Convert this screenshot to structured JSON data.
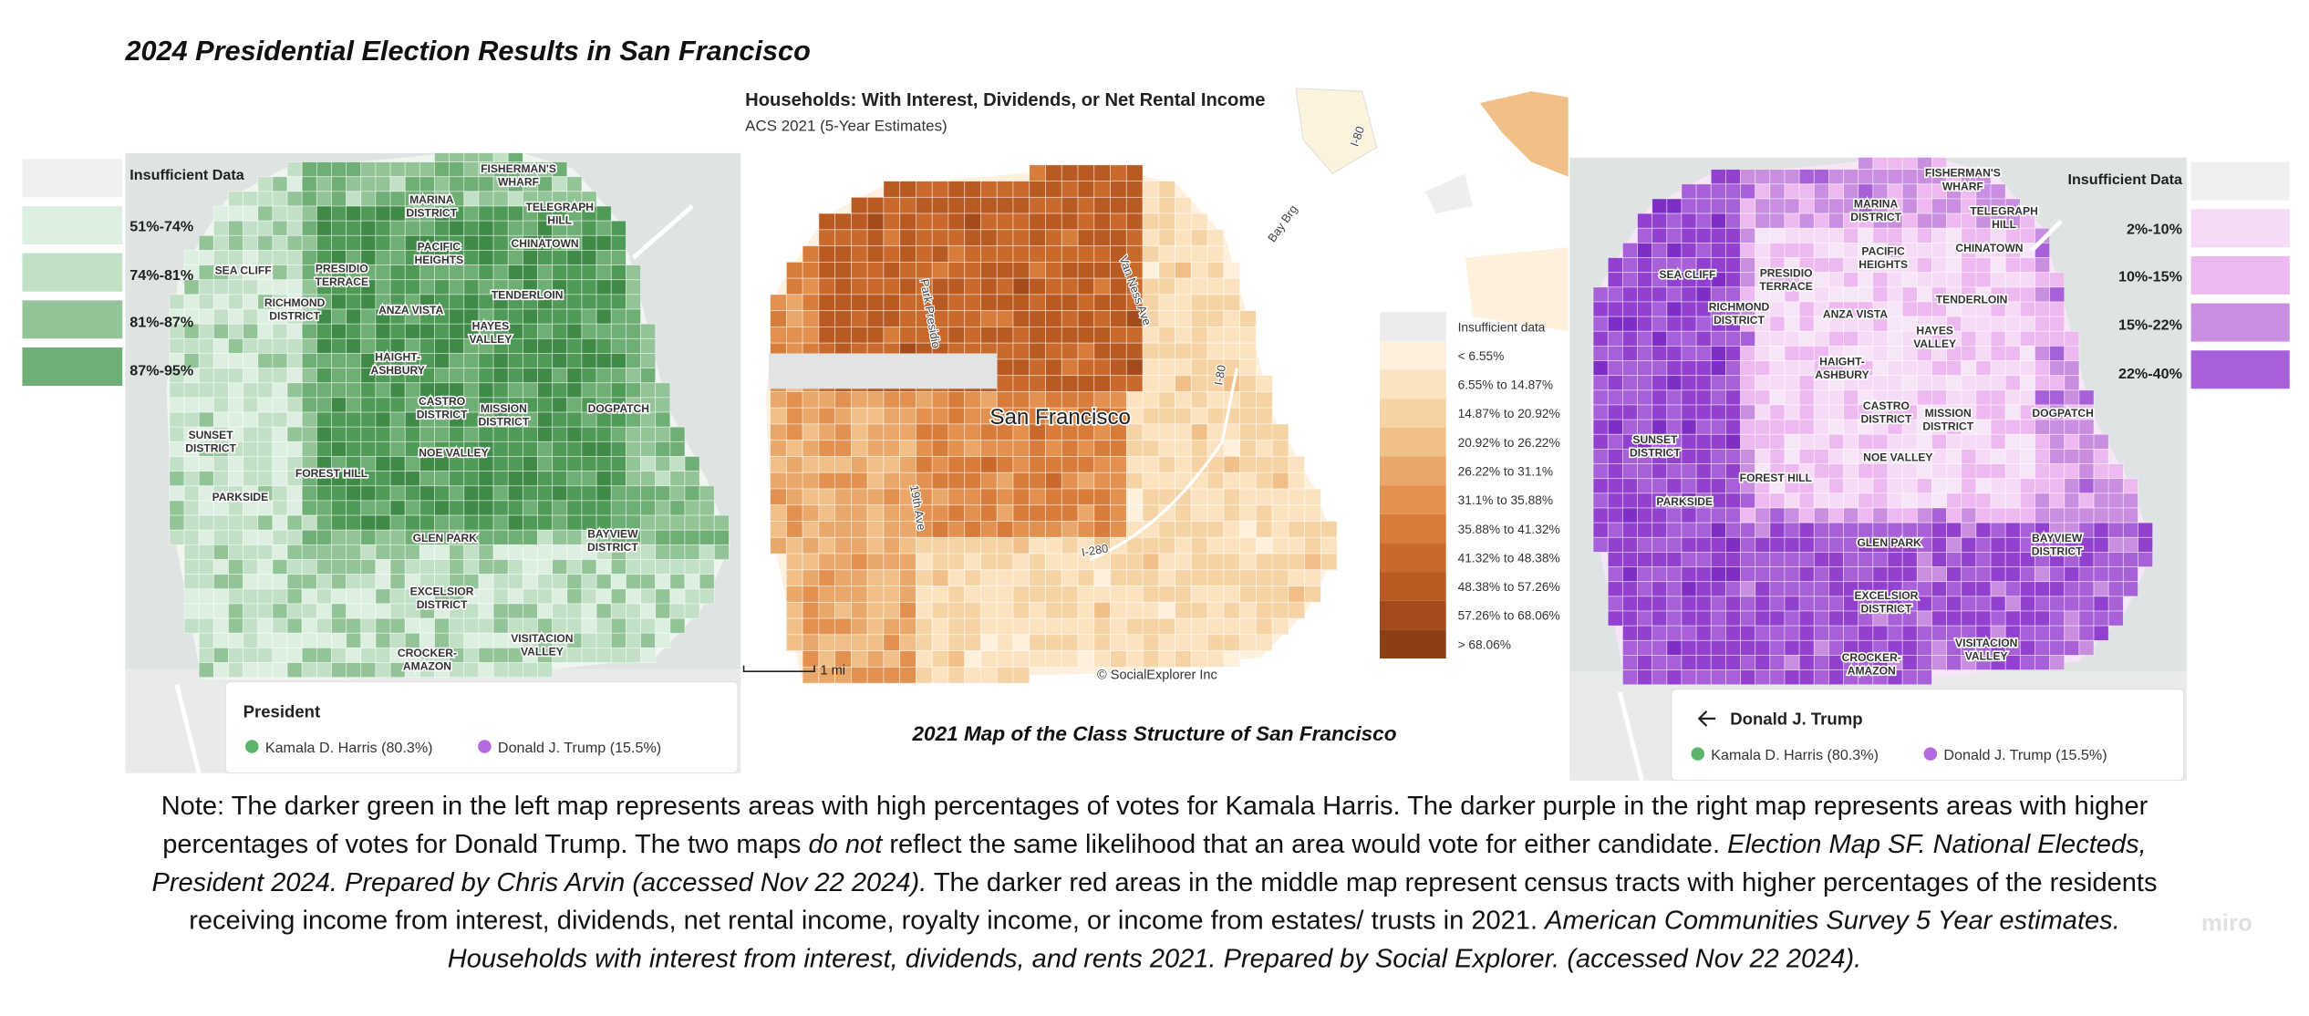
{
  "title": "2024 Presidential Election Results in San Francisco",
  "left_map": {
    "legend": [
      "Insufficient Data",
      "51%-74%",
      "74%-81%",
      "81%-87%",
      "87%-95%"
    ],
    "neighborhoods": [
      [
        "FISHERMAN'S",
        "WHARF"
      ],
      [
        "MARINA",
        "DISTRICT"
      ],
      [
        "TELEGRAPH",
        "HILL"
      ],
      [
        "PACIFIC",
        "HEIGHTS"
      ],
      [
        "CHINATOWN"
      ],
      [
        "SEA CLIFF"
      ],
      [
        "PRESIDIO",
        "TERRACE"
      ],
      [
        "RICHMOND",
        "DISTRICT"
      ],
      [
        "ANZA VISTA"
      ],
      [
        "TENDERLOIN"
      ],
      [
        "HAYES",
        "VALLEY"
      ],
      [
        "HAIGHT-",
        "ASHBURY"
      ],
      [
        "CASTRO",
        "DISTRICT"
      ],
      [
        "MISSION",
        "DISTRICT"
      ],
      [
        "DOGPATCH"
      ],
      [
        "SUNSET",
        "DISTRICT"
      ],
      [
        "FOREST HILL"
      ],
      [
        "PARKSIDE"
      ],
      [
        "NOE VALLEY"
      ],
      [
        "GLEN PARK"
      ],
      [
        "BAYVIEW",
        "DISTRICT"
      ],
      [
        "EXCELSIOR",
        "DISTRICT"
      ],
      [
        "VISITACION",
        "VALLEY"
      ],
      [
        "CROCKER-",
        "AMAZON"
      ]
    ],
    "panel": {
      "title": "President",
      "candidates": [
        "Kamala D. Harris (80.3%)",
        "Donald J. Trump (15.5%)"
      ]
    }
  },
  "middle_map": {
    "title": "Households: With Interest, Dividends, or Net Rental Income",
    "subtitle": "ACS 2021 (5-Year Estimates)",
    "city": "San Francisco",
    "streets": [
      "I-80",
      "Bay Brg",
      "Van Ness Ave",
      "19th Ave",
      "I-280",
      "I-80",
      "Park Presidio"
    ],
    "legend": [
      "Insufficient data",
      "< 6.55%",
      "6.55% to 14.87%",
      "14.87% to 20.92%",
      "20.92% to 26.22%",
      "26.22% to 31.1%",
      "31.1% to 35.88%",
      "35.88% to 41.32%",
      "41.32% to 48.38%",
      "48.38% to 57.26%",
      "57.26% to 68.06%",
      "> 68.06%"
    ],
    "scale": "1 mi",
    "credit": "© SocialExplorer Inc",
    "caption": "2021 Map of the Class Structure of San Francisco"
  },
  "right_map": {
    "legend": [
      "Insufficient Data",
      "2%-10%",
      "10%-15%",
      "15%-22%",
      "22%-40%"
    ],
    "neighborhoods": [
      [
        "FISHERMAN'S",
        "WHARF"
      ],
      [
        "MARINA",
        "DISTRICT"
      ],
      [
        "TELEGRAPH",
        "HILL"
      ],
      [
        "PACIFIC",
        "HEIGHTS"
      ],
      [
        "CHINATOWN"
      ],
      [
        "SEA CLIFF"
      ],
      [
        "PRESIDIO",
        "TERRACE"
      ],
      [
        "RICHMOND",
        "DISTRICT"
      ],
      [
        "ANZA VISTA"
      ],
      [
        "TENDERLOIN"
      ],
      [
        "HAYES",
        "VALLEY"
      ],
      [
        "HAIGHT-",
        "ASHBURY"
      ],
      [
        "CASTRO",
        "DISTRICT"
      ],
      [
        "MISSION",
        "DISTRICT"
      ],
      [
        "DOGPATCH"
      ],
      [
        "SUNSET",
        "DISTRICT"
      ],
      [
        "FOREST HILL"
      ],
      [
        "PARKSIDE"
      ],
      [
        "NOE VALLEY"
      ],
      [
        "GLEN PARK"
      ],
      [
        "BAYVIEW",
        "DISTRICT"
      ],
      [
        "EXCELSIOR",
        "DISTRICT"
      ],
      [
        "VISITACION",
        "VALLEY"
      ],
      [
        "CROCKER-",
        "AMAZON"
      ]
    ],
    "panel": {
      "title": "Donald J. Trump",
      "candidates": [
        "Kamala D. Harris (80.3%)",
        "Donald J. Trump (15.5%)"
      ]
    }
  },
  "note": {
    "lines": [
      [
        {
          "text": "Note: The darker green in the left map represents areas with high percentages of votes for Kamala Harris. The darker purple in the right map represents areas with higher",
          "italic": false
        }
      ],
      [
        {
          "text": "percentages of votes for Donald Trump. The two maps ",
          "italic": false
        },
        {
          "text": "do not",
          "italic": true
        },
        {
          "text": " reflect the same likelihood that an area would vote for either candidate. ",
          "italic": false
        },
        {
          "text": "Election Map SF. National Electeds,",
          "italic": true
        }
      ],
      [
        {
          "text": "President 2024. Prepared by Chris Arvin (accessed Nov 22 2024).",
          "italic": true
        },
        {
          "text": " The darker red areas in the middle map represent census tracts with higher percentages of the residents",
          "italic": false
        }
      ],
      [
        {
          "text": "receiving income from interest, dividends, net rental income, royalty income, or income from estates/ trusts in 2021. ",
          "italic": false
        },
        {
          "text": "American Communities Survey 5 Year estimates.",
          "italic": true
        }
      ],
      [
        {
          "text": "Households with interest from interest, dividends, and rents 2021. Prepared by Social Explorer. (accessed Nov 22 2024).",
          "italic": true
        }
      ]
    ]
  },
  "watermark": "miro"
}
